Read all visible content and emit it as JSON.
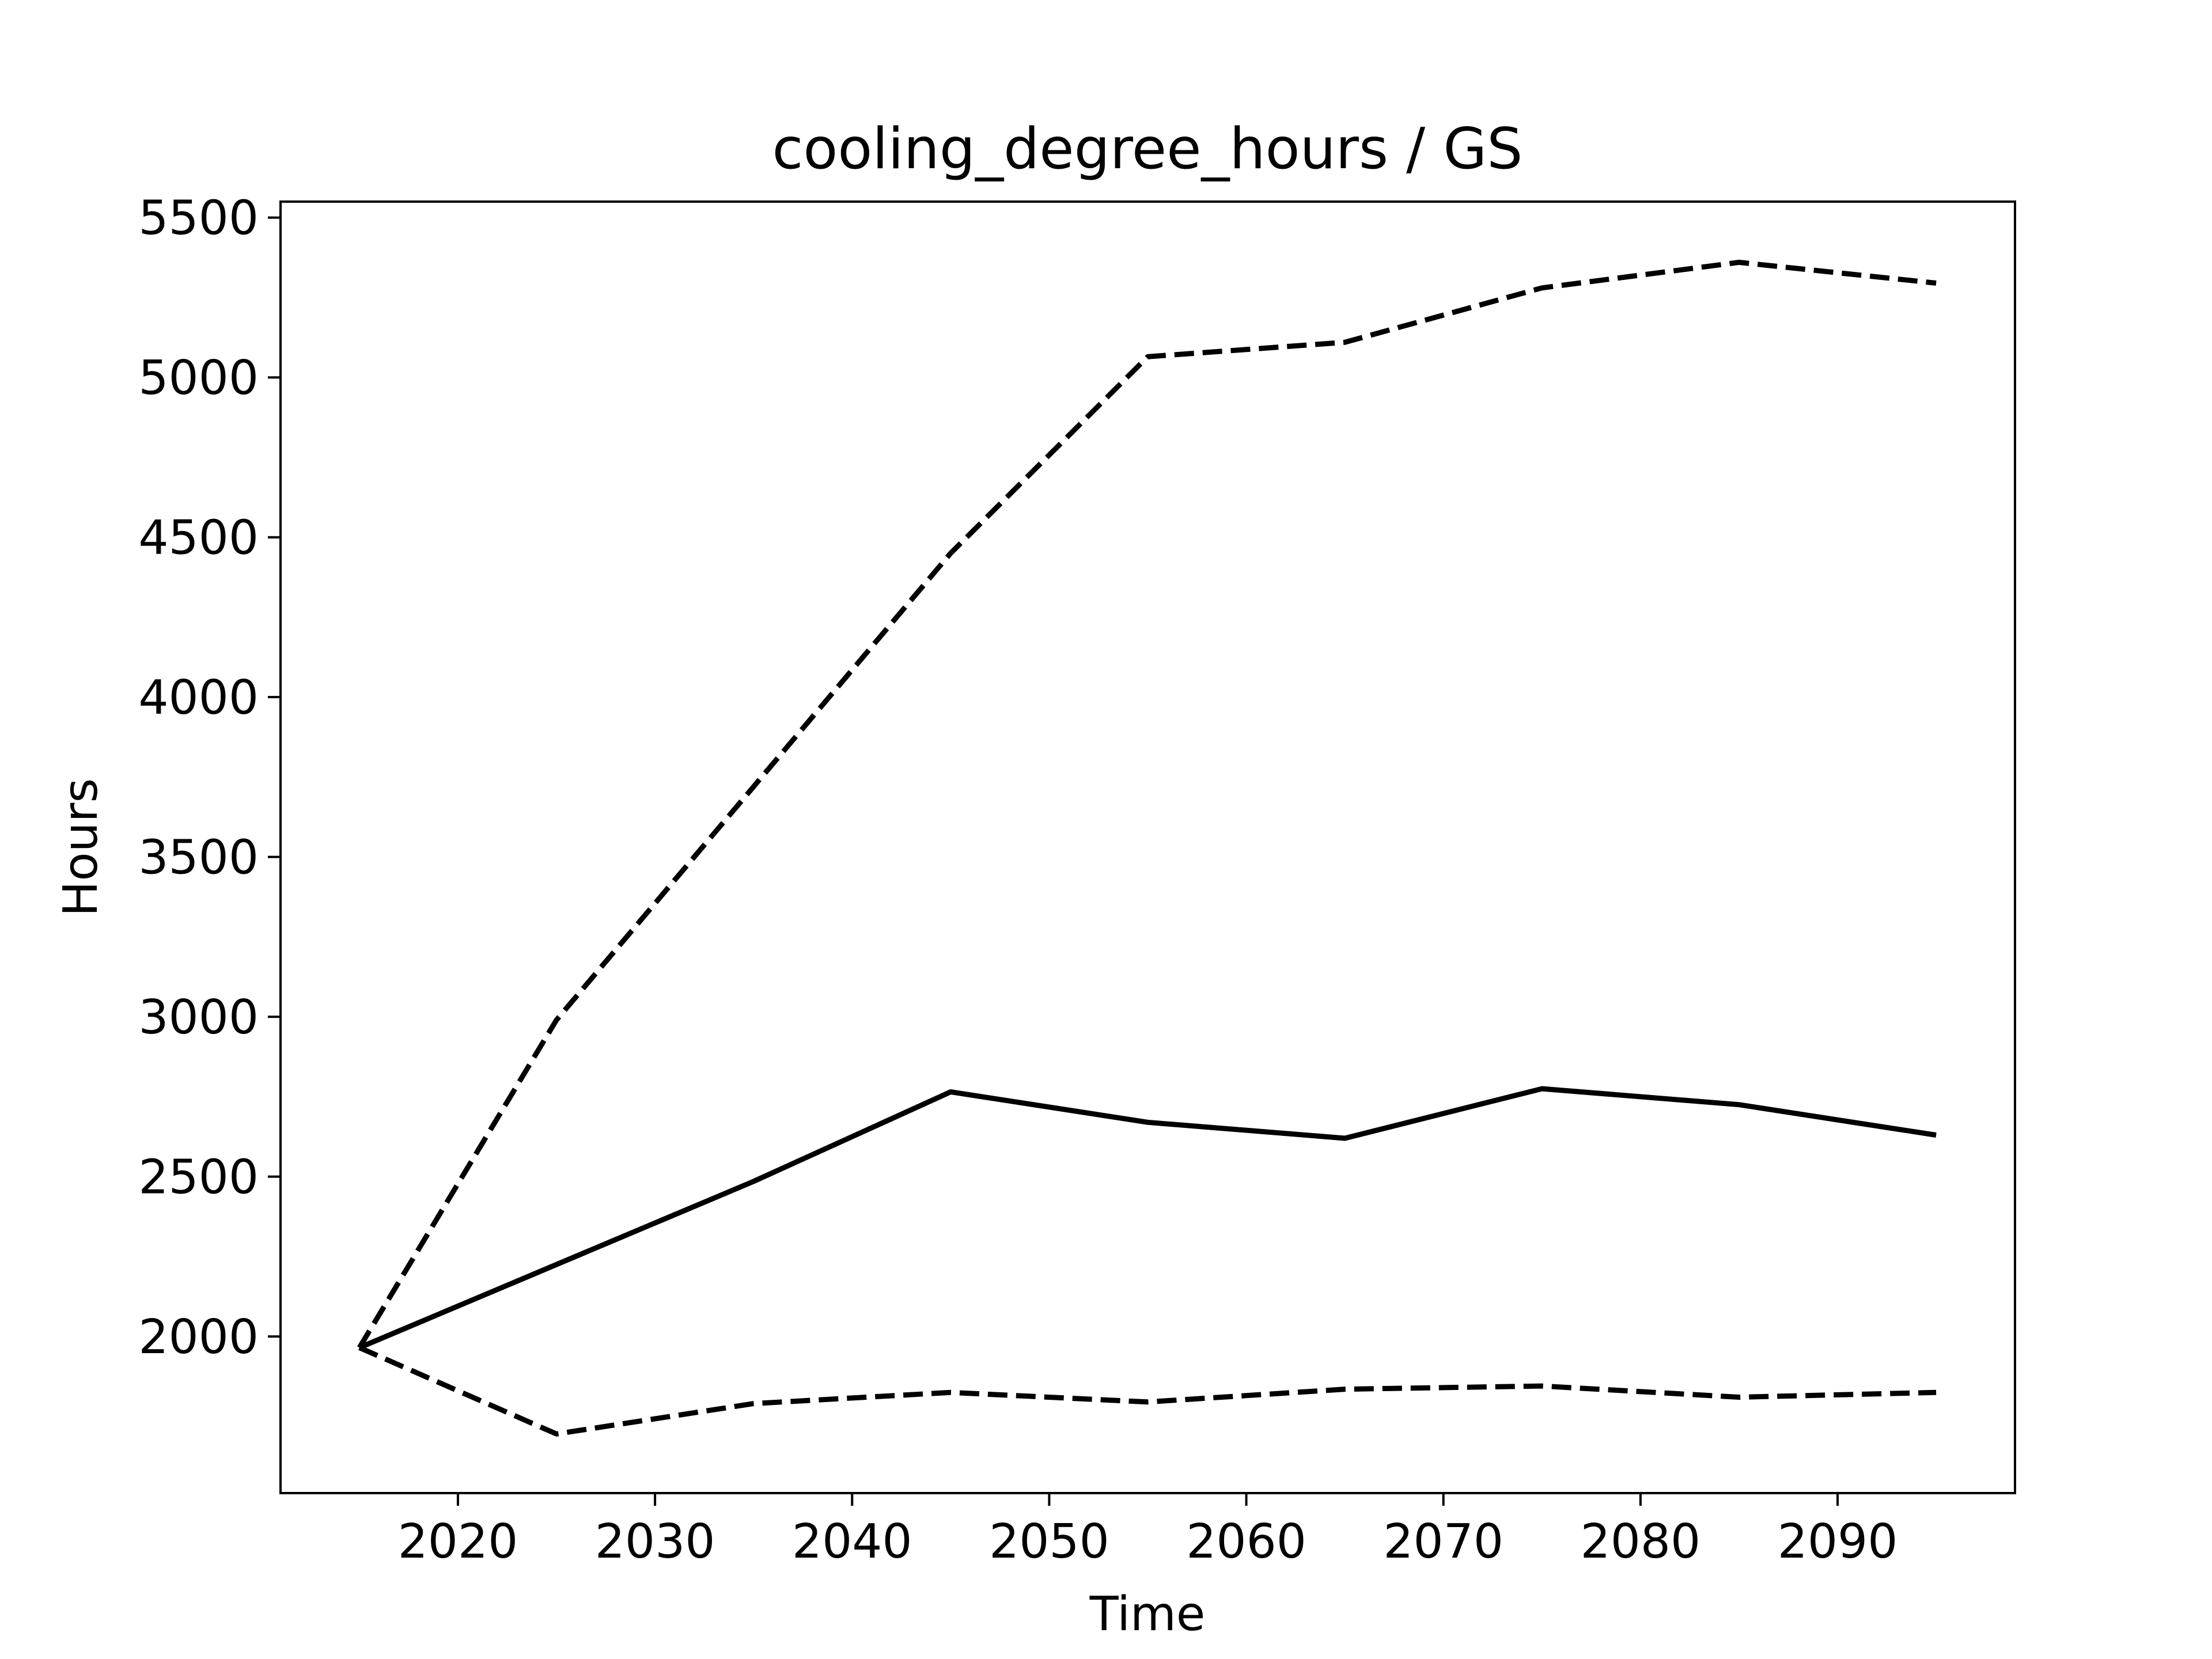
{
  "chart_data": {
    "type": "line",
    "title": "cooling_degree_hours / GS",
    "xlabel": "Time",
    "ylabel": "Hours",
    "xlim": [
      2011,
      2099
    ],
    "ylim": [
      1510,
      5550
    ],
    "xticks": [
      2020,
      2030,
      2040,
      2050,
      2060,
      2070,
      2080,
      2090
    ],
    "yticks": [
      2000,
      2500,
      3000,
      3500,
      4000,
      4500,
      5000,
      5500
    ],
    "grid": false,
    "legend": "none",
    "colors": {
      "line": "#000000",
      "axes": "#000000",
      "background": "#ffffff"
    },
    "x": [
      2015,
      2025,
      2035,
      2045,
      2055,
      2065,
      2075,
      2085,
      2095
    ],
    "series": [
      {
        "style": "dashed",
        "values": [
          1965,
          2990,
          3720,
          4450,
          5065,
          5110,
          5280,
          5360,
          5295
        ]
      },
      {
        "style": "solid",
        "values": [
          1965,
          2225,
          2485,
          2765,
          2670,
          2620,
          2775,
          2725,
          2630
        ]
      },
      {
        "style": "dashed",
        "values": [
          1965,
          1695,
          1790,
          1825,
          1795,
          1835,
          1845,
          1810,
          1825
        ]
      }
    ]
  }
}
